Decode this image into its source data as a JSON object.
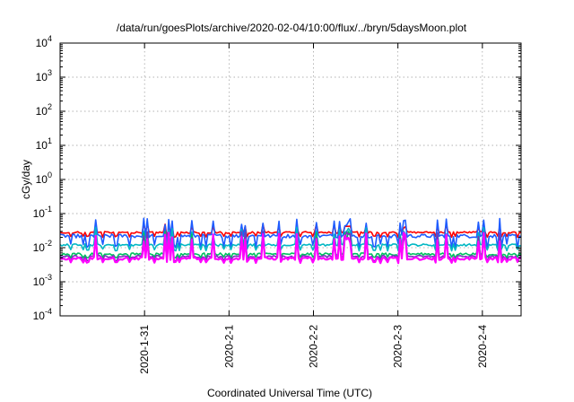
{
  "chart_data": {
    "type": "line",
    "title": "/data/run/goesPlots/archive/2020-02-04/10:00/flux/../bryn/5daysMoon.plot",
    "xlabel": "Coordinated Universal Time (UTC)",
    "ylabel": "cGy/day",
    "yscale": "log",
    "ylim": [
      "1e-4",
      "1e4"
    ],
    "y_ticks": [
      {
        "base": "10",
        "exp": "-4",
        "value": 0.0001
      },
      {
        "base": "10",
        "exp": "-3",
        "value": 0.001
      },
      {
        "base": "10",
        "exp": "-2",
        "value": 0.01
      },
      {
        "base": "10",
        "exp": "-1",
        "value": 0.1
      },
      {
        "base": "10",
        "exp": "0",
        "value": 1
      },
      {
        "base": "10",
        "exp": "1",
        "value": 10
      },
      {
        "base": "10",
        "exp": "2",
        "value": 100
      },
      {
        "base": "10",
        "exp": "3",
        "value": 1000
      },
      {
        "base": "10",
        "exp": "4",
        "value": 10000
      }
    ],
    "xlim": [
      "2020-01-30T00:00",
      "2020-02-04T11:00"
    ],
    "x_ticks": [
      {
        "label": "2020-1-31",
        "value": "2020-01-31T00:00"
      },
      {
        "label": "2020-2-1",
        "value": "2020-02-01T00:00"
      },
      {
        "label": "2020-2-2",
        "value": "2020-02-02T00:00"
      },
      {
        "label": "2020-2-3",
        "value": "2020-02-03T00:00"
      },
      {
        "label": "2020-2-4",
        "value": "2020-02-04T00:00"
      }
    ],
    "grid": true,
    "series": [
      {
        "color": "#ff0000",
        "base": 0.028,
        "spike_max": 0.05,
        "dip_min": 0.02,
        "noise": 0.12
      },
      {
        "color": "#1e5cff",
        "base": 0.022,
        "spike_max": 0.075,
        "dip_min": 0.009,
        "noise": 0.25
      },
      {
        "color": "#00b7c3",
        "base": 0.012,
        "spike_max": 0.04,
        "dip_min": 0.008,
        "noise": 0.15
      },
      {
        "color": "#00c060",
        "base": 0.0065,
        "spike_max": 0.03,
        "dip_min": 0.005,
        "noise": 0.15
      },
      {
        "color": "#7b2fbe",
        "base": 0.0055,
        "spike_max": 0.03,
        "dip_min": 0.004,
        "noise": 0.15
      },
      {
        "color": "#ff00ff",
        "base": 0.0048,
        "spike_max": 0.028,
        "dip_min": 0.0035,
        "noise": 0.18
      }
    ]
  }
}
